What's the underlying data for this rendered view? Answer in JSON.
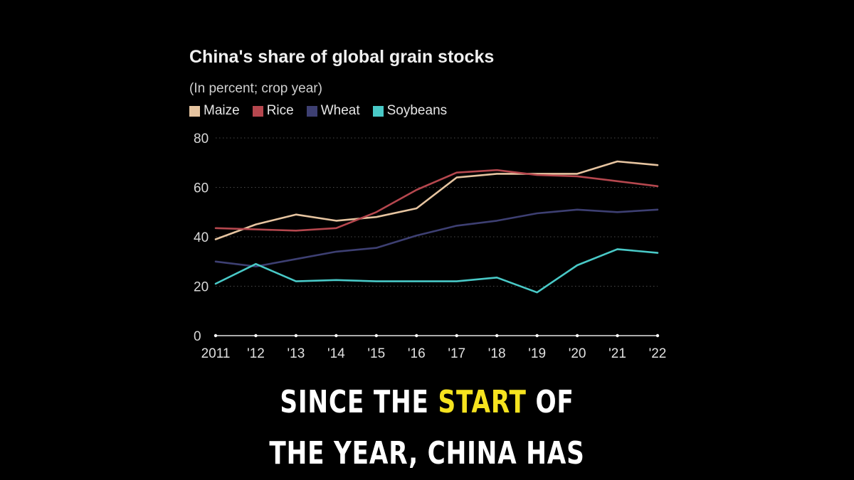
{
  "chart_data": {
    "type": "line",
    "title": "China's share of global grain stocks",
    "subtitle": "(In percent; crop year)",
    "x_labels": [
      "2011",
      "'12",
      "'13",
      "'14",
      "'15",
      "'16",
      "'17",
      "'18",
      "'19",
      "'20",
      "'21",
      "'22"
    ],
    "ylim": [
      0,
      80
    ],
    "yticks": [
      "0",
      "20",
      "40",
      "60",
      "80"
    ],
    "grid": "horizontal dotted",
    "legend_position": "top-left",
    "series": [
      {
        "name": "Maize",
        "color": "#e6c4a0",
        "values": [
          39,
          45,
          49,
          46.5,
          48,
          51.5,
          64,
          65.5,
          65.5,
          65.5,
          70.5,
          69
        ]
      },
      {
        "name": "Rice",
        "color": "#b5474e",
        "values": [
          43.5,
          43,
          42.5,
          43.5,
          50,
          59,
          66,
          67,
          65,
          64.5,
          62.5,
          60.5
        ]
      },
      {
        "name": "Wheat",
        "color": "#3d3f72",
        "values": [
          30,
          28,
          31,
          34,
          35.5,
          40.5,
          44.5,
          46.5,
          49.5,
          51,
          50,
          51
        ]
      },
      {
        "name": "Soybeans",
        "color": "#49c9c7",
        "values": [
          21,
          29,
          22,
          22.5,
          22,
          22,
          22,
          23.5,
          17.5,
          28.5,
          35,
          33.5
        ]
      }
    ]
  },
  "caption": {
    "line1_pre": "SINCE THE ",
    "line1_highlight": "START",
    "line1_post": " OF",
    "line2": "THE YEAR, CHINA HAS",
    "highlight_color": "#f5e31f"
  }
}
